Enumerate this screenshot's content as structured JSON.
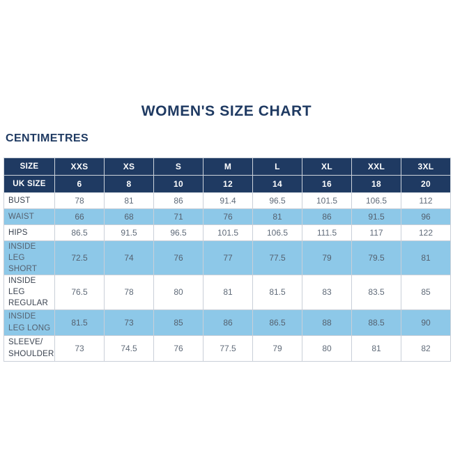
{
  "page_title": "WOMEN'S SIZE CHART",
  "unit_label": "CENTIMETRES",
  "colors": {
    "navy_header": "#1f3a62",
    "light_blue_row": "#8dc8e8",
    "white_row": "#ffffff",
    "value_text": "#5f6a78",
    "label_text": "#39424f",
    "border": "#c9cfd8"
  },
  "chart_data": {
    "type": "table",
    "title": "WOMEN'S SIZE CHART",
    "unit": "CENTIMETRES",
    "header_rows": [
      {
        "label": "SIZE",
        "values": [
          "XXS",
          "XS",
          "S",
          "M",
          "L",
          "XL",
          "XXL",
          "3XL"
        ]
      },
      {
        "label": "UK SIZE",
        "values": [
          "6",
          "8",
          "10",
          "12",
          "14",
          "16",
          "18",
          "20"
        ]
      }
    ],
    "rows": [
      {
        "label": "BUST",
        "values": [
          "78",
          "81",
          "86",
          "91.4",
          "96.5",
          "101.5",
          "106.5",
          "112"
        ]
      },
      {
        "label": "WAIST",
        "values": [
          "66",
          "68",
          "71",
          "76",
          "81",
          "86",
          "91.5",
          "96"
        ]
      },
      {
        "label": "HIPS",
        "values": [
          "86.5",
          "91.5",
          "96.5",
          "101.5",
          "106.5",
          "111.5",
          "117",
          "122"
        ]
      },
      {
        "label": "INSIDE LEG SHORT",
        "values": [
          "72.5",
          "74",
          "76",
          "77",
          "77.5",
          "79",
          "79.5",
          "81"
        ]
      },
      {
        "label": "INSIDE LEG REGULAR",
        "values": [
          "76.5",
          "78",
          "80",
          "81",
          "81.5",
          "83",
          "83.5",
          "85"
        ]
      },
      {
        "label": "INSIDE LEG LONG",
        "values": [
          "81.5",
          "73",
          "85",
          "86",
          "86.5",
          "88",
          "88.5",
          "90"
        ]
      },
      {
        "label": "SLEEVE/SHOULDER",
        "values": [
          "73",
          "74.5",
          "76",
          "77.5",
          "79",
          "80",
          "81",
          "82"
        ]
      }
    ]
  }
}
